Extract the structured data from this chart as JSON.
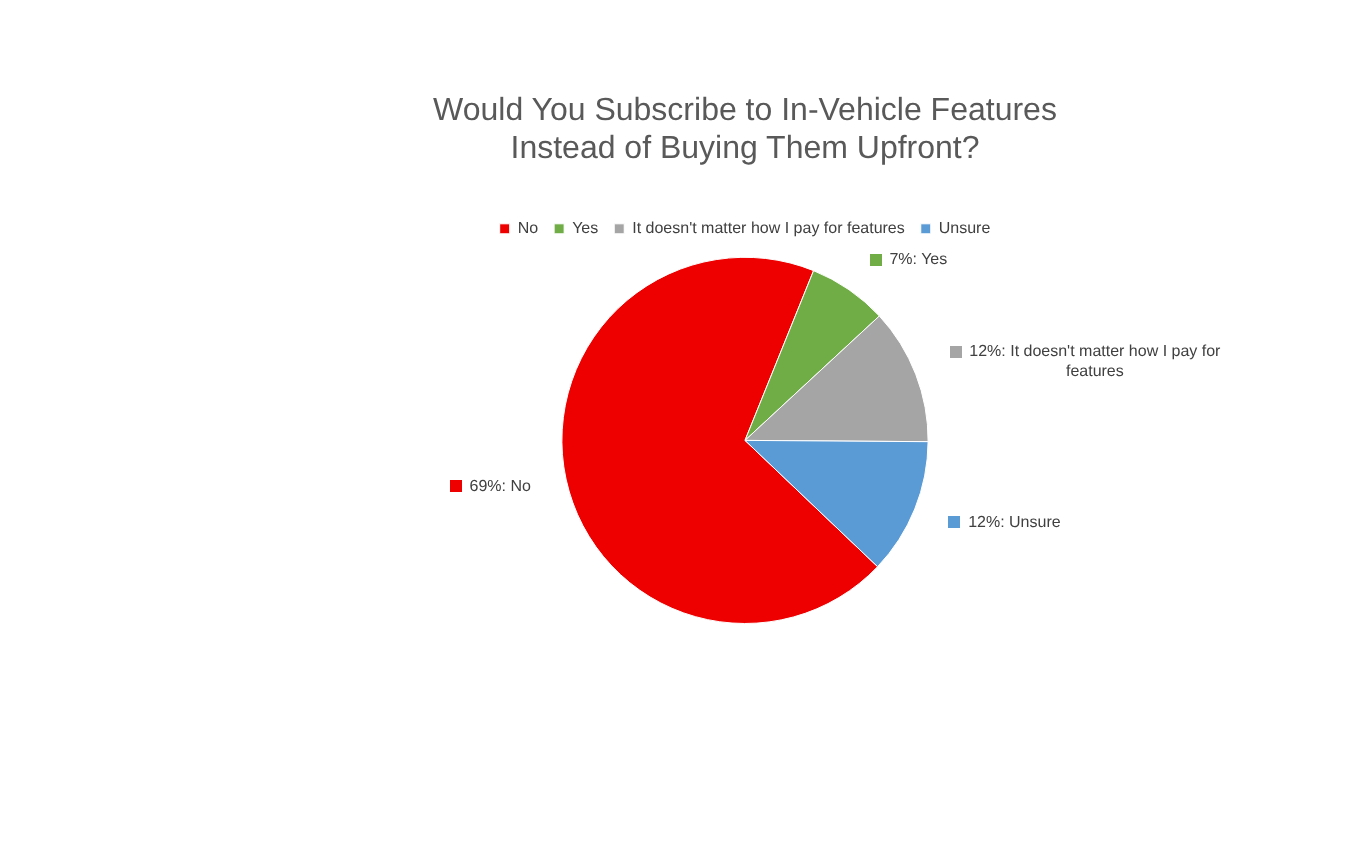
{
  "chart_data": {
    "type": "pie",
    "title": "Would You Subscribe to In-Vehicle Features\nInstead of Buying Them Upfront?",
    "categories": [
      "No",
      "Yes",
      "It doesn't matter how I pay for features",
      "Unsure"
    ],
    "values": [
      69,
      7,
      12,
      12
    ],
    "colors": [
      "#ee0000",
      "#70ad47",
      "#a5a5a5",
      "#5b9bd5"
    ],
    "value_labels": [
      "69%: No",
      "7%: Yes",
      "12%: It doesn't matter how I pay for features",
      "12%: Unsure"
    ],
    "legend": "top"
  }
}
